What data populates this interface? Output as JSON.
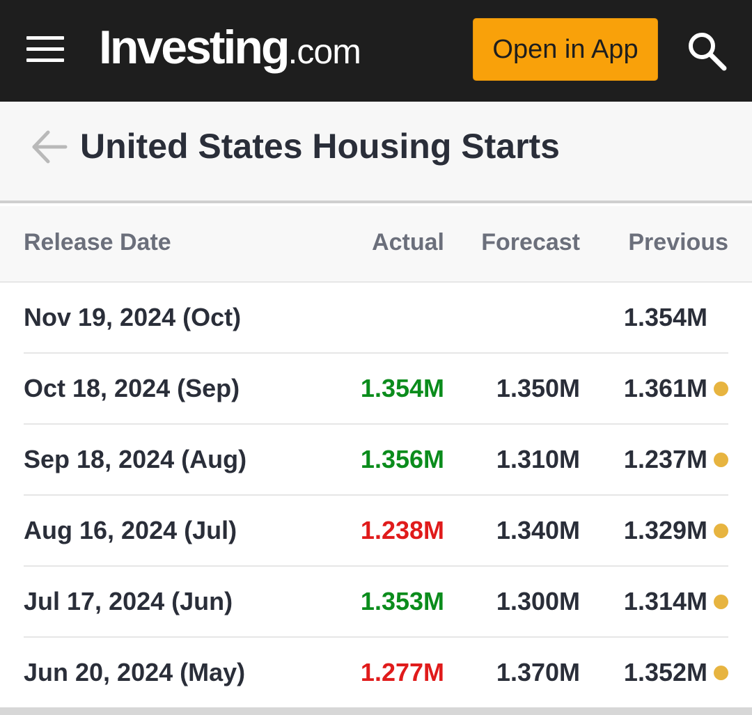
{
  "header": {
    "logo_main": "Investing",
    "logo_sub": ".com",
    "open_app_label": "Open in App",
    "icons": [
      "hamburger-menu-icon",
      "search-icon"
    ],
    "colors": {
      "background": "#1e1e1e",
      "button": "#f9a10a"
    }
  },
  "page": {
    "title": "United States Housing Starts",
    "back_icon": "arrow-left-icon"
  },
  "table": {
    "headers": {
      "date": "Release Date",
      "actual": "Actual",
      "forecast": "Forecast",
      "previous": "Previous"
    },
    "rows": [
      {
        "date": "Nov 19, 2024 (Oct)",
        "actual": "",
        "actual_trend": "",
        "forecast": "",
        "previous": "1.354M",
        "revised_dot": false
      },
      {
        "date": "Oct 18, 2024 (Sep)",
        "actual": "1.354M",
        "actual_trend": "up",
        "forecast": "1.350M",
        "previous": "1.361M",
        "revised_dot": true
      },
      {
        "date": "Sep 18, 2024 (Aug)",
        "actual": "1.356M",
        "actual_trend": "up",
        "forecast": "1.310M",
        "previous": "1.237M",
        "revised_dot": true
      },
      {
        "date": "Aug 16, 2024 (Jul)",
        "actual": "1.238M",
        "actual_trend": "down",
        "forecast": "1.340M",
        "previous": "1.329M",
        "revised_dot": true
      },
      {
        "date": "Jul 17, 2024 (Jun)",
        "actual": "1.353M",
        "actual_trend": "up",
        "forecast": "1.300M",
        "previous": "1.314M",
        "revised_dot": true
      },
      {
        "date": "Jun 20, 2024 (May)",
        "actual": "1.277M",
        "actual_trend": "down",
        "forecast": "1.370M",
        "previous": "1.352M",
        "revised_dot": true
      }
    ],
    "colors": {
      "up": "#0b8c1c",
      "down": "#e01b1b",
      "revised_dot": "#e7b440"
    }
  }
}
